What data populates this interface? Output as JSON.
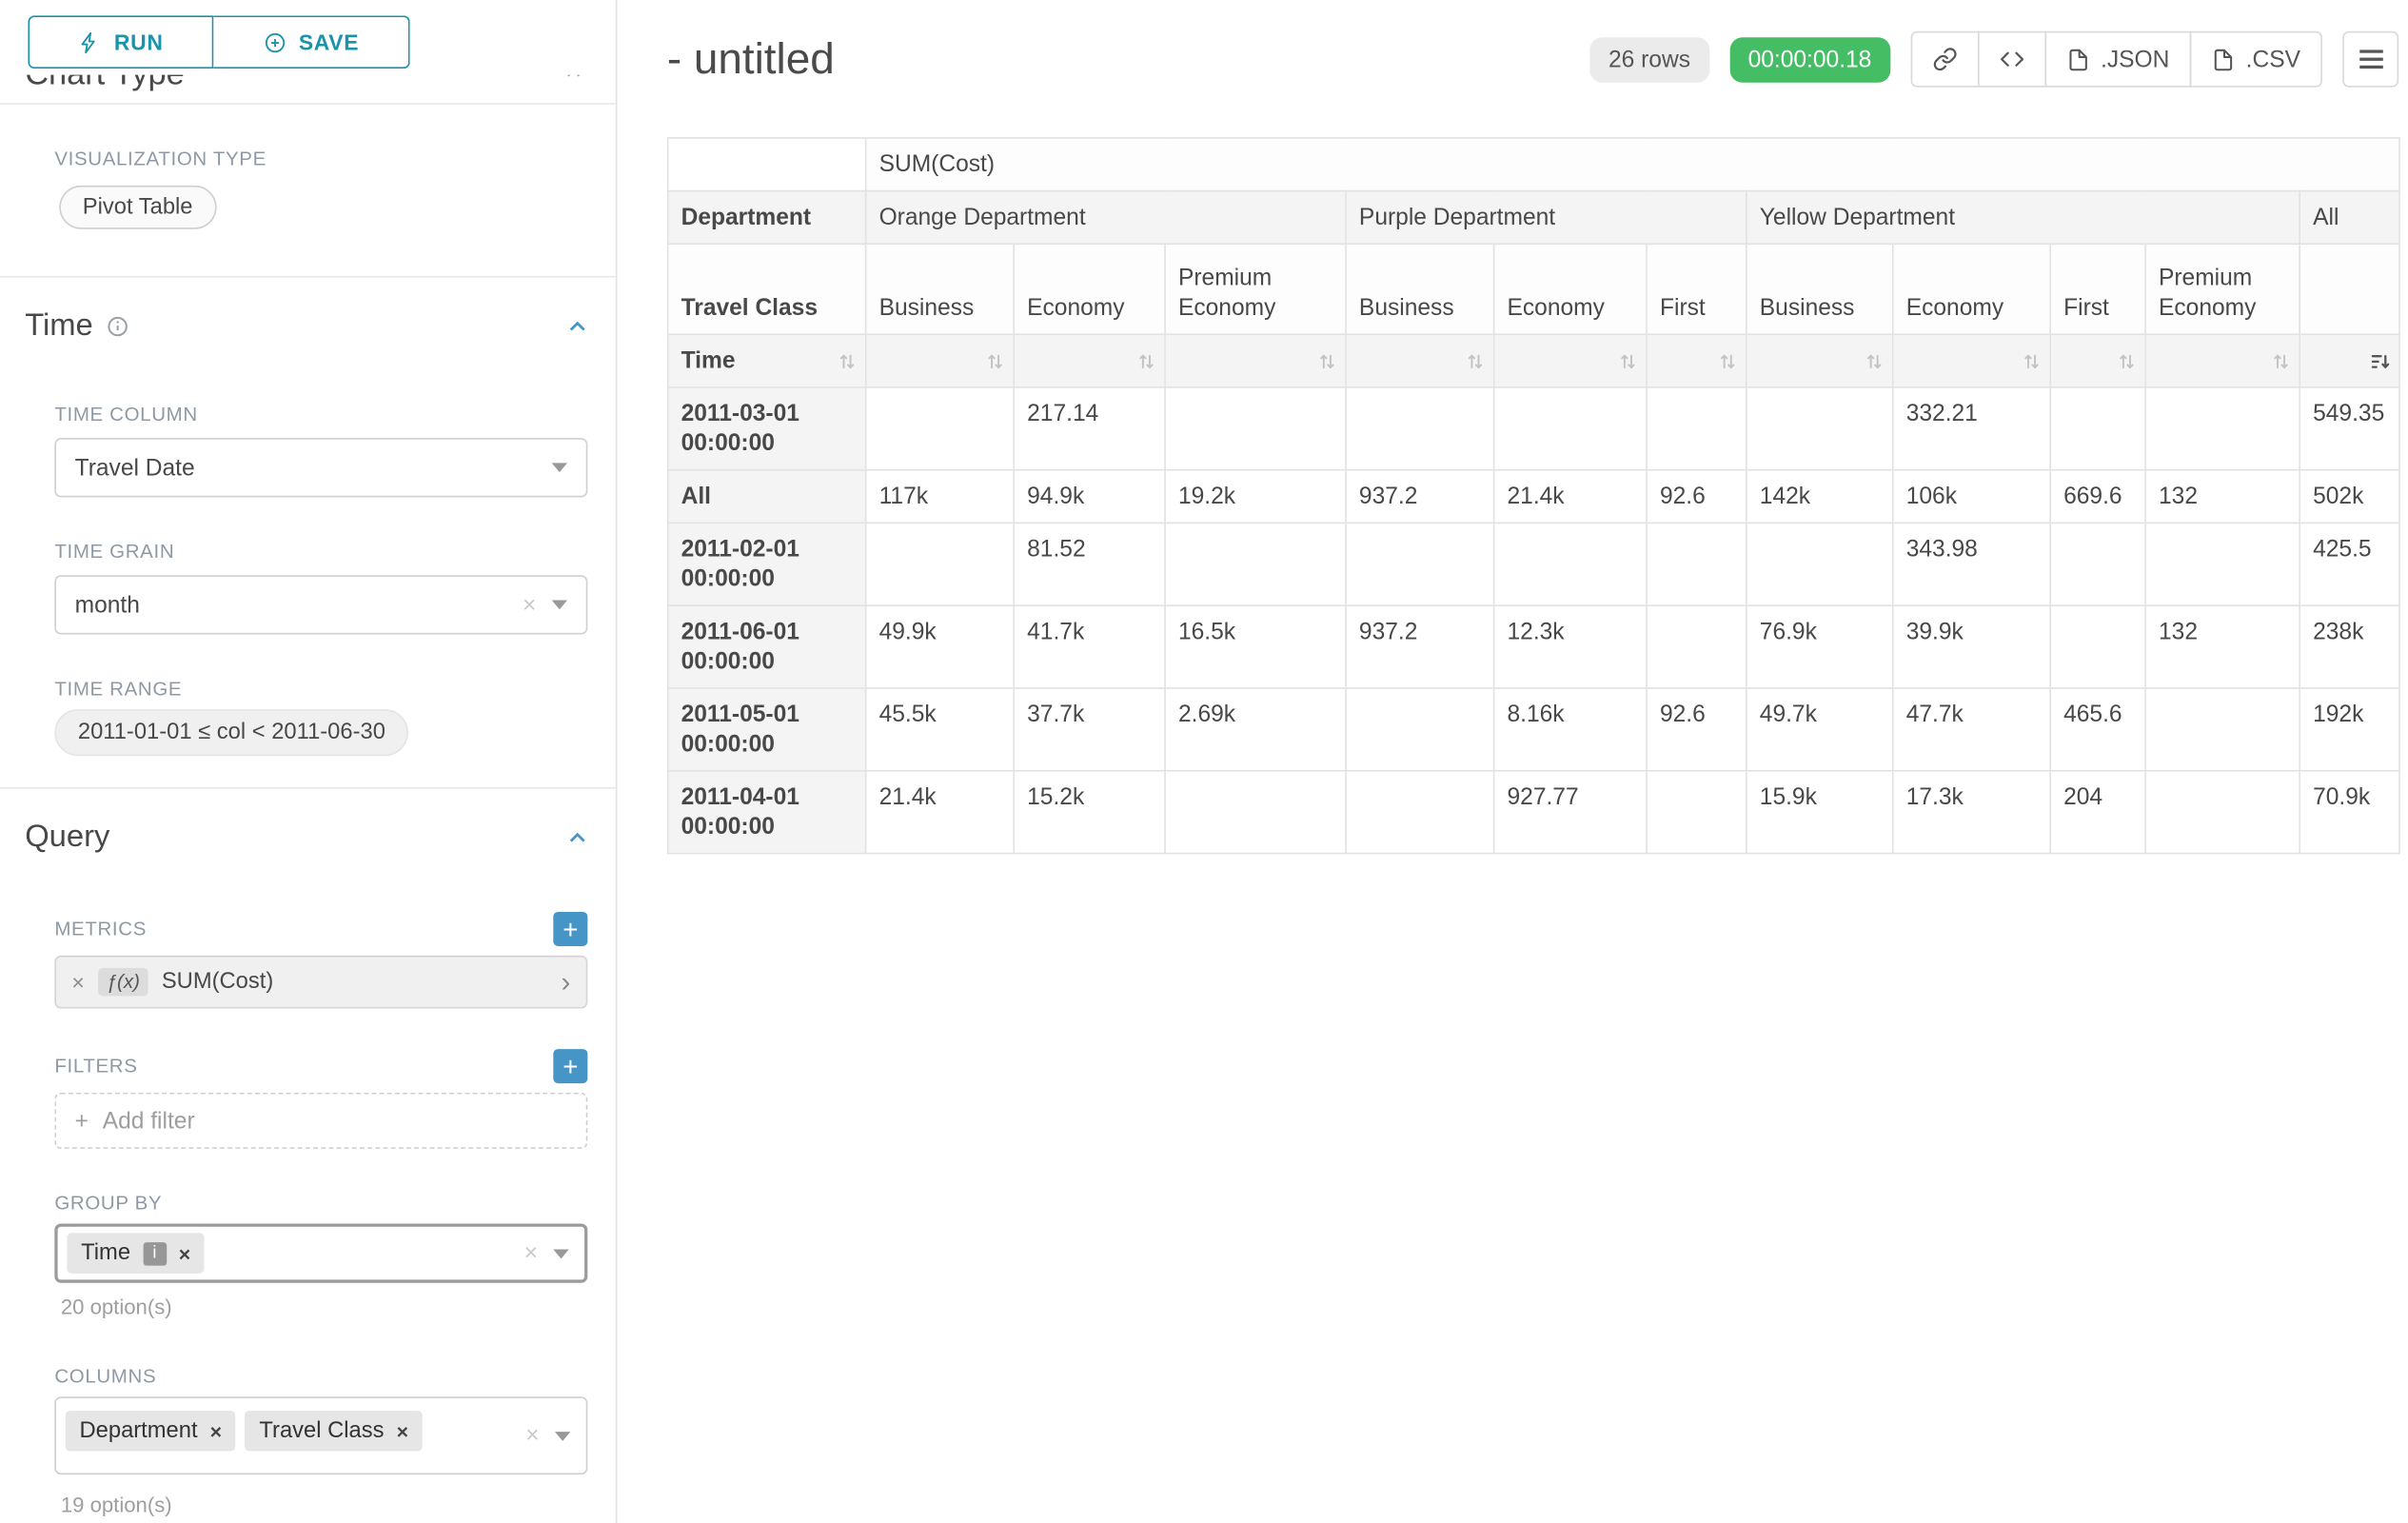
{
  "colors": {
    "accent_teal": "#1a93ab",
    "plus_blue": "#4596c6",
    "timer_green": "#45bd65",
    "focus_border": "#9b9b9b"
  },
  "icons": {
    "plus": "+",
    "close": "×",
    "chevron_right": "›"
  },
  "sidebar": {
    "run_label": "RUN",
    "save_label": "SAVE",
    "clipped_section_title": "Chart Type",
    "viz_type_label": "VISUALIZATION TYPE",
    "viz_type_value": "Pivot Table",
    "time": {
      "heading": "Time",
      "time_column_label": "TIME COLUMN",
      "time_column_value": "Travel Date",
      "time_grain_label": "TIME GRAIN",
      "time_grain_value": "month",
      "time_range_label": "TIME RANGE",
      "time_range_value": "2011-01-01 ≤ col < 2011-06-30"
    },
    "query": {
      "heading": "Query",
      "metrics_label": "METRICS",
      "metric_fn": "ƒ(x)",
      "metric_value": "SUM(Cost)",
      "filters_label": "FILTERS",
      "add_filter_label": "Add filter",
      "group_by_label": "GROUP BY",
      "group_by_chips": [
        "Time"
      ],
      "group_by_options": "20 option(s)",
      "columns_label": "COLUMNS",
      "columns_chips": [
        "Department",
        "Travel Class"
      ],
      "columns_options": "19 option(s)"
    }
  },
  "header": {
    "title": "- untitled",
    "rows_badge": "26 rows",
    "timer_badge": "00:00:00.18",
    "json_label": ".JSON",
    "csv_label": ".CSV"
  },
  "chart_data": {
    "type": "table",
    "metric_header": "SUM(Cost)",
    "column_dimension": "Department",
    "row_dimension": "Travel Class",
    "time_axis_label": "Time",
    "column_groups": [
      {
        "label": "Orange Department",
        "columns": [
          "Business",
          "Economy",
          "Premium Economy"
        ]
      },
      {
        "label": "Purple Department",
        "columns": [
          "Business",
          "Economy",
          "First"
        ]
      },
      {
        "label": "Yellow Department",
        "columns": [
          "Business",
          "Economy",
          "First",
          "Premium Economy"
        ]
      }
    ],
    "all_column_label": "All",
    "rows": [
      {
        "label": "2011-03-01 00:00:00",
        "cells": [
          "",
          "217.14",
          "",
          "",
          "",
          "",
          "",
          "332.21",
          "",
          "",
          "549.35"
        ]
      },
      {
        "label": "All",
        "cells": [
          "117k",
          "94.9k",
          "19.2k",
          "937.2",
          "21.4k",
          "92.6",
          "142k",
          "106k",
          "669.6",
          "132",
          "502k"
        ]
      },
      {
        "label": "2011-02-01 00:00:00",
        "cells": [
          "",
          "81.52",
          "",
          "",
          "",
          "",
          "",
          "343.98",
          "",
          "",
          "425.5"
        ]
      },
      {
        "label": "2011-06-01 00:00:00",
        "cells": [
          "49.9k",
          "41.7k",
          "16.5k",
          "937.2",
          "12.3k",
          "",
          "76.9k",
          "39.9k",
          "",
          "132",
          "238k"
        ]
      },
      {
        "label": "2011-05-01 00:00:00",
        "cells": [
          "45.5k",
          "37.7k",
          "2.69k",
          "",
          "8.16k",
          "92.6",
          "49.7k",
          "47.7k",
          "465.6",
          "",
          "192k"
        ]
      },
      {
        "label": "2011-04-01 00:00:00",
        "cells": [
          "21.4k",
          "15.2k",
          "",
          "",
          "927.77",
          "",
          "15.9k",
          "17.3k",
          "204",
          "",
          "70.9k"
        ]
      }
    ]
  }
}
